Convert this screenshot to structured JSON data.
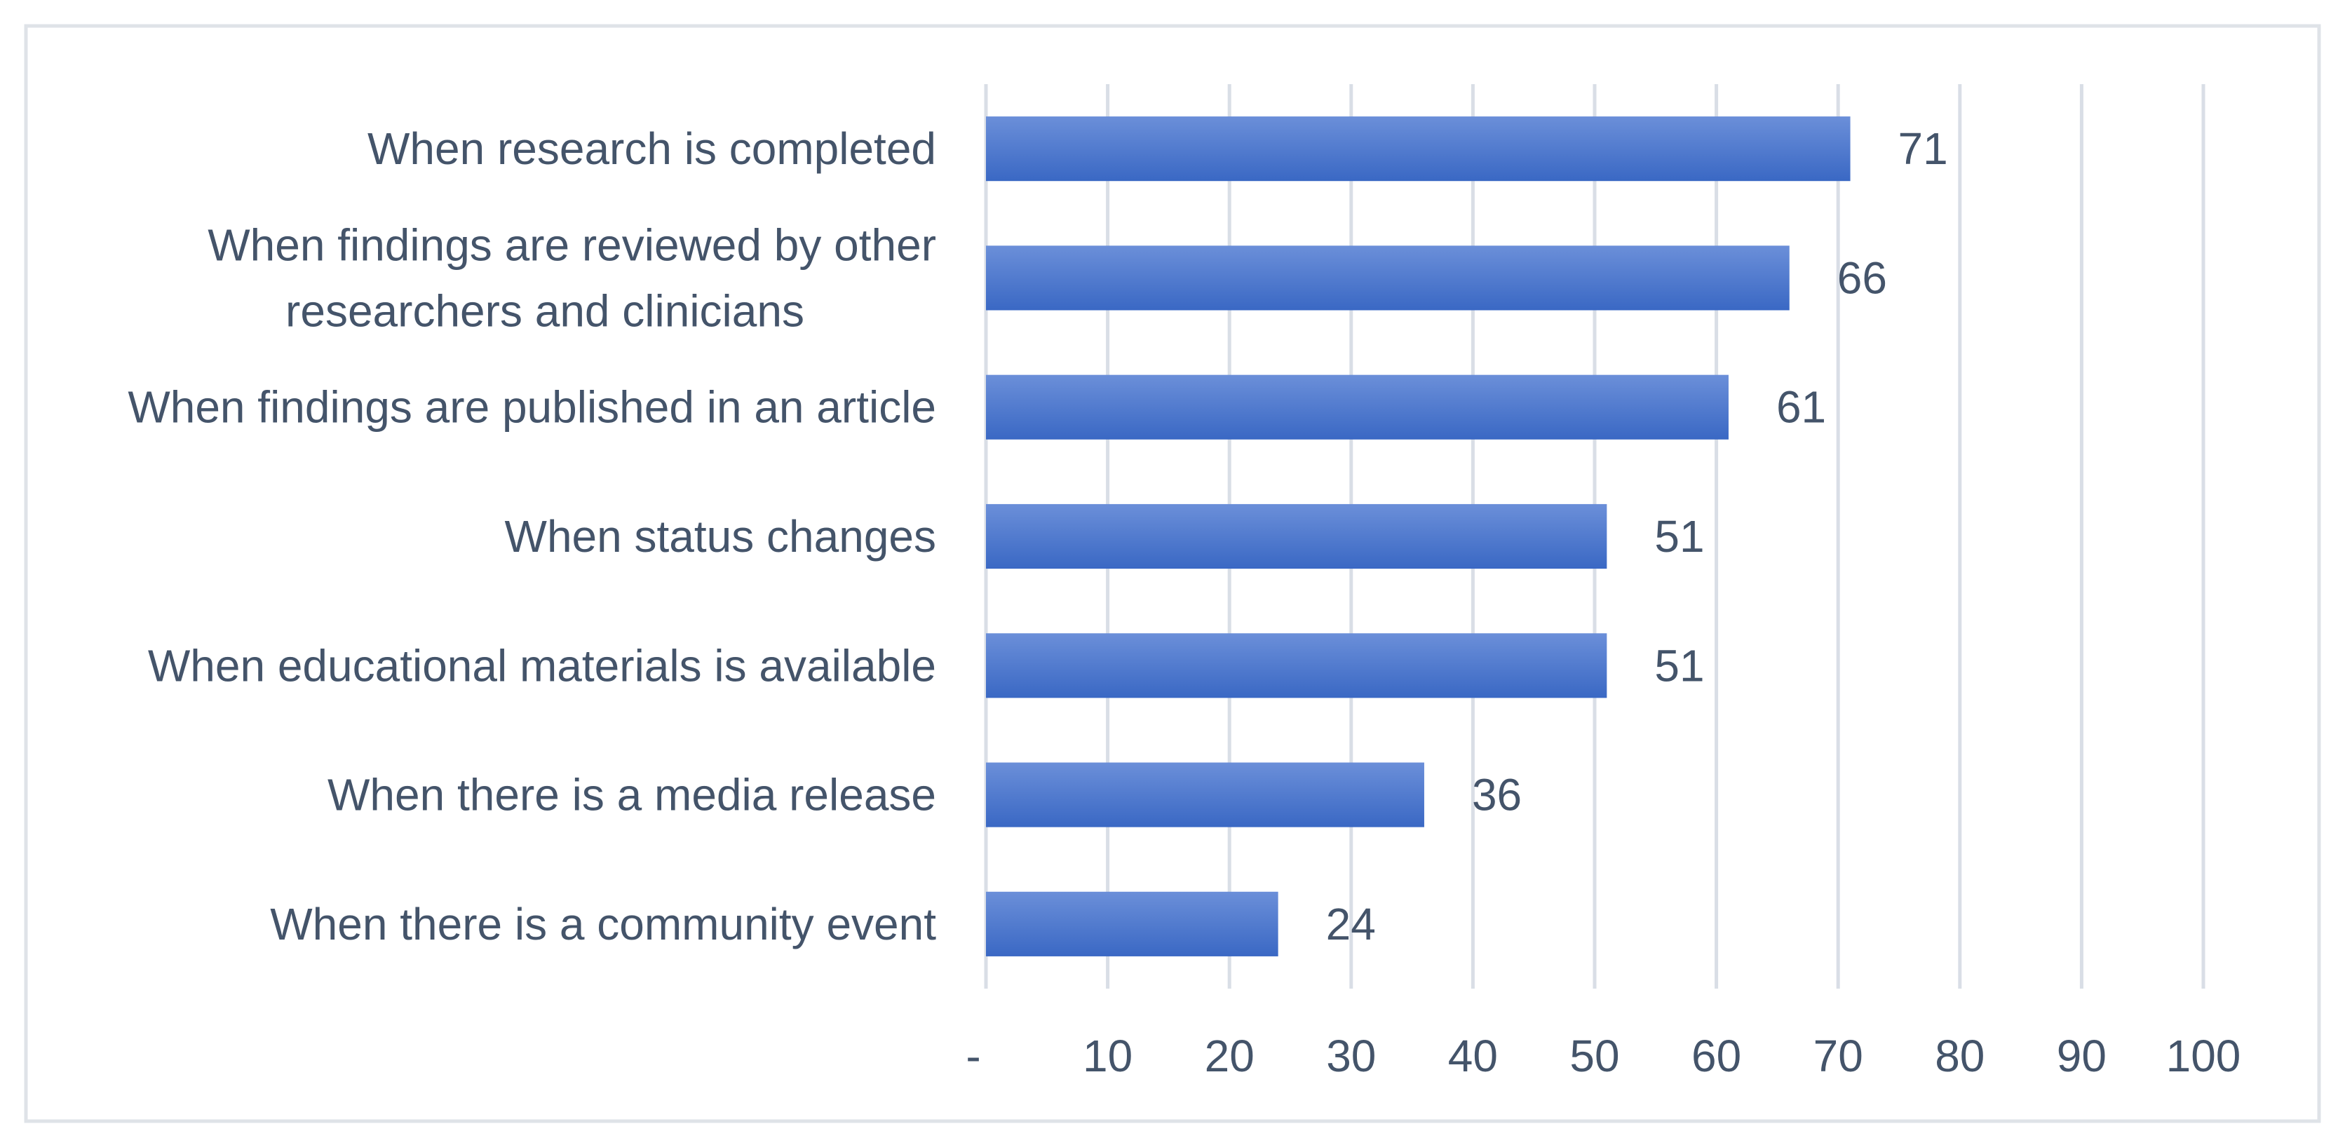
{
  "chart_data": {
    "type": "bar",
    "orientation": "horizontal",
    "title": "",
    "xlabel": "",
    "ylabel": "",
    "categories": [
      "When research is completed",
      "When findings are reviewed by other researchers and clinicians",
      "When findings are published in an article",
      "When status changes",
      "When educational materials is available",
      "When there is a media release",
      "When there is a community event"
    ],
    "category_lines": [
      [
        "When research is completed"
      ],
      [
        "When findings are reviewed by other",
        "researchers and clinicians"
      ],
      [
        "When findings are published in an article"
      ],
      [
        "When status changes"
      ],
      [
        "When educational materials is available"
      ],
      [
        "When there is a media release"
      ],
      [
        "When there is a community event"
      ]
    ],
    "values": [
      71,
      66,
      61,
      51,
      51,
      36,
      24
    ],
    "data_labels": [
      "71",
      "66",
      "61",
      "51",
      "51",
      "36",
      "24"
    ],
    "xlim": [
      0,
      100
    ],
    "ticks": [
      0,
      10,
      20,
      30,
      40,
      50,
      60,
      70,
      80,
      90,
      100
    ],
    "tick_labels": [
      "-",
      "10",
      "20",
      "30",
      "40",
      "50",
      "60",
      "70",
      "80",
      "90",
      "100"
    ],
    "grid": true,
    "legend": "none",
    "bar_color": "#3a68c4",
    "bar_color_light": "#6b8fd9",
    "grid_color": "#d9dee6",
    "text_color": "#44546a",
    "border_color": "#dfe3e8"
  }
}
